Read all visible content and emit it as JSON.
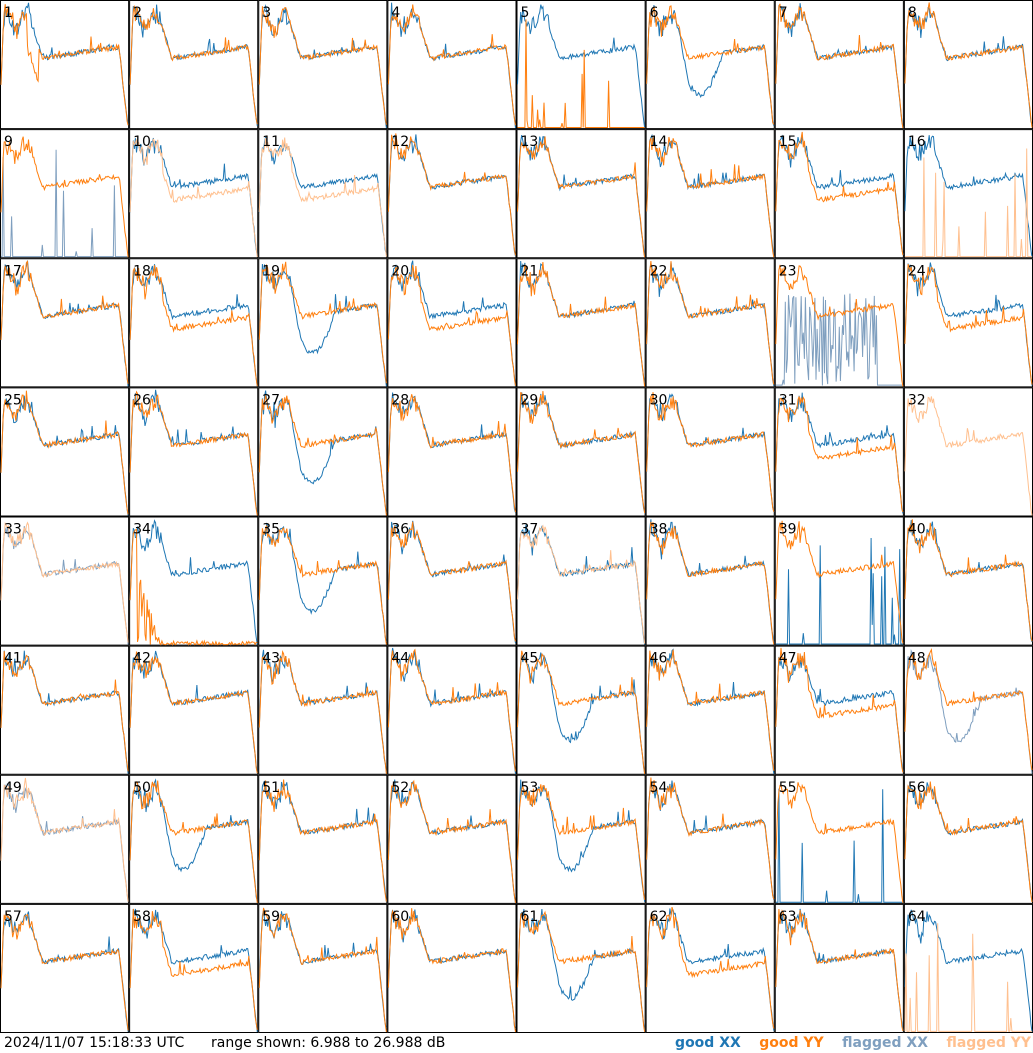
{
  "footer": {
    "timestamp": "2024/11/07 15:18:33 UTC",
    "range_text": "range shown: 6.988 to 26.988 dB"
  },
  "legend": [
    {
      "label": "good XX",
      "color": "#1f77b4"
    },
    {
      "label": "good YY",
      "color": "#ff7f0e"
    },
    {
      "label": "flagged XX",
      "color": "#7f9fbf"
    },
    {
      "label": "flagged YY",
      "color": "#ffc08f"
    }
  ],
  "chart_data": {
    "type": "line",
    "grid": {
      "rows": 8,
      "cols": 8
    },
    "ylim": [
      6.988,
      26.988
    ],
    "yunit": "dB",
    "panels": [
      {
        "label": "1",
        "xx": "good",
        "yy": "good",
        "mode": "drop"
      },
      {
        "label": "2",
        "xx": "good",
        "yy": "good",
        "mode": "normal"
      },
      {
        "label": "3",
        "xx": "good",
        "yy": "good",
        "mode": "normal"
      },
      {
        "label": "4",
        "xx": "good",
        "yy": "good",
        "mode": "normal"
      },
      {
        "label": "5",
        "xx": "good",
        "yy": "good",
        "mode": "yyflat"
      },
      {
        "label": "6",
        "xx": "good",
        "yy": "good",
        "mode": "xxdip"
      },
      {
        "label": "7",
        "xx": "good",
        "yy": "good",
        "mode": "normal"
      },
      {
        "label": "8",
        "xx": "good",
        "yy": "good",
        "mode": "normal"
      },
      {
        "label": "9",
        "xx": "flagged",
        "yy": "good",
        "mode": "xxflat"
      },
      {
        "label": "10",
        "xx": "good",
        "yy": "flagged",
        "mode": "split"
      },
      {
        "label": "11",
        "xx": "good",
        "yy": "flagged",
        "mode": "split"
      },
      {
        "label": "12",
        "xx": "good",
        "yy": "good",
        "mode": "normal"
      },
      {
        "label": "13",
        "xx": "good",
        "yy": "good",
        "mode": "normal"
      },
      {
        "label": "14",
        "xx": "good",
        "yy": "good",
        "mode": "normal"
      },
      {
        "label": "15",
        "xx": "good",
        "yy": "good",
        "mode": "split"
      },
      {
        "label": "16",
        "xx": "good",
        "yy": "flagged",
        "mode": "yyflat"
      },
      {
        "label": "17",
        "xx": "good",
        "yy": "good",
        "mode": "normal"
      },
      {
        "label": "18",
        "xx": "good",
        "yy": "good",
        "mode": "split"
      },
      {
        "label": "19",
        "xx": "good",
        "yy": "good",
        "mode": "xxdip"
      },
      {
        "label": "20",
        "xx": "good",
        "yy": "good",
        "mode": "split"
      },
      {
        "label": "21",
        "xx": "good",
        "yy": "good",
        "mode": "normal"
      },
      {
        "label": "22",
        "xx": "good",
        "yy": "good",
        "mode": "normal"
      },
      {
        "label": "23",
        "xx": "flagged",
        "yy": "good",
        "mode": "noisy"
      },
      {
        "label": "24",
        "xx": "good",
        "yy": "good",
        "mode": "split"
      },
      {
        "label": "25",
        "xx": "good",
        "yy": "good",
        "mode": "normal"
      },
      {
        "label": "26",
        "xx": "good",
        "yy": "good",
        "mode": "normal"
      },
      {
        "label": "27",
        "xx": "good",
        "yy": "good",
        "mode": "xxdip"
      },
      {
        "label": "28",
        "xx": "good",
        "yy": "good",
        "mode": "normal"
      },
      {
        "label": "29",
        "xx": "good",
        "yy": "good",
        "mode": "normal"
      },
      {
        "label": "30",
        "xx": "good",
        "yy": "good",
        "mode": "normal"
      },
      {
        "label": "31",
        "xx": "good",
        "yy": "good",
        "mode": "split"
      },
      {
        "label": "32",
        "xx": "flagged",
        "yy": "flagged",
        "mode": "yyonly"
      },
      {
        "label": "33",
        "xx": "flagged",
        "yy": "flagged",
        "mode": "normal"
      },
      {
        "label": "34",
        "xx": "good",
        "yy": "good",
        "mode": "yyfall"
      },
      {
        "label": "35",
        "xx": "good",
        "yy": "good",
        "mode": "xxdip"
      },
      {
        "label": "36",
        "xx": "good",
        "yy": "good",
        "mode": "normal"
      },
      {
        "label": "37",
        "xx": "good",
        "yy": "flagged",
        "mode": "normal"
      },
      {
        "label": "38",
        "xx": "good",
        "yy": "good",
        "mode": "normal"
      },
      {
        "label": "39",
        "xx": "good",
        "yy": "good",
        "mode": "xxflat"
      },
      {
        "label": "40",
        "xx": "good",
        "yy": "good",
        "mode": "normal"
      },
      {
        "label": "41",
        "xx": "good",
        "yy": "good",
        "mode": "normal"
      },
      {
        "label": "42",
        "xx": "good",
        "yy": "good",
        "mode": "normal"
      },
      {
        "label": "43",
        "xx": "good",
        "yy": "good",
        "mode": "normal"
      },
      {
        "label": "44",
        "xx": "good",
        "yy": "good",
        "mode": "normal"
      },
      {
        "label": "45",
        "xx": "good",
        "yy": "good",
        "mode": "xxdip"
      },
      {
        "label": "46",
        "xx": "good",
        "yy": "good",
        "mode": "normal"
      },
      {
        "label": "47",
        "xx": "good",
        "yy": "good",
        "mode": "split"
      },
      {
        "label": "48",
        "xx": "flagged",
        "yy": "good",
        "mode": "xxdip"
      },
      {
        "label": "49",
        "xx": "flagged",
        "yy": "flagged",
        "mode": "normal"
      },
      {
        "label": "50",
        "xx": "good",
        "yy": "good",
        "mode": "xxdip"
      },
      {
        "label": "51",
        "xx": "good",
        "yy": "good",
        "mode": "normal"
      },
      {
        "label": "52",
        "xx": "good",
        "yy": "good",
        "mode": "normal"
      },
      {
        "label": "53",
        "xx": "good",
        "yy": "good",
        "mode": "xxdip"
      },
      {
        "label": "54",
        "xx": "good",
        "yy": "good",
        "mode": "normal"
      },
      {
        "label": "55",
        "xx": "good",
        "yy": "good",
        "mode": "xxflat"
      },
      {
        "label": "56",
        "xx": "good",
        "yy": "good",
        "mode": "normal"
      },
      {
        "label": "57",
        "xx": "good",
        "yy": "good",
        "mode": "normal"
      },
      {
        "label": "58",
        "xx": "good",
        "yy": "good",
        "mode": "split"
      },
      {
        "label": "59",
        "xx": "good",
        "yy": "good",
        "mode": "normal"
      },
      {
        "label": "60",
        "xx": "good",
        "yy": "good",
        "mode": "normal"
      },
      {
        "label": "61",
        "xx": "good",
        "yy": "good",
        "mode": "xxdip"
      },
      {
        "label": "62",
        "xx": "good",
        "yy": "good",
        "mode": "split"
      },
      {
        "label": "63",
        "xx": "good",
        "yy": "good",
        "mode": "normal"
      },
      {
        "label": "64",
        "xx": "good",
        "yy": "flagged",
        "mode": "yyflat"
      }
    ]
  }
}
